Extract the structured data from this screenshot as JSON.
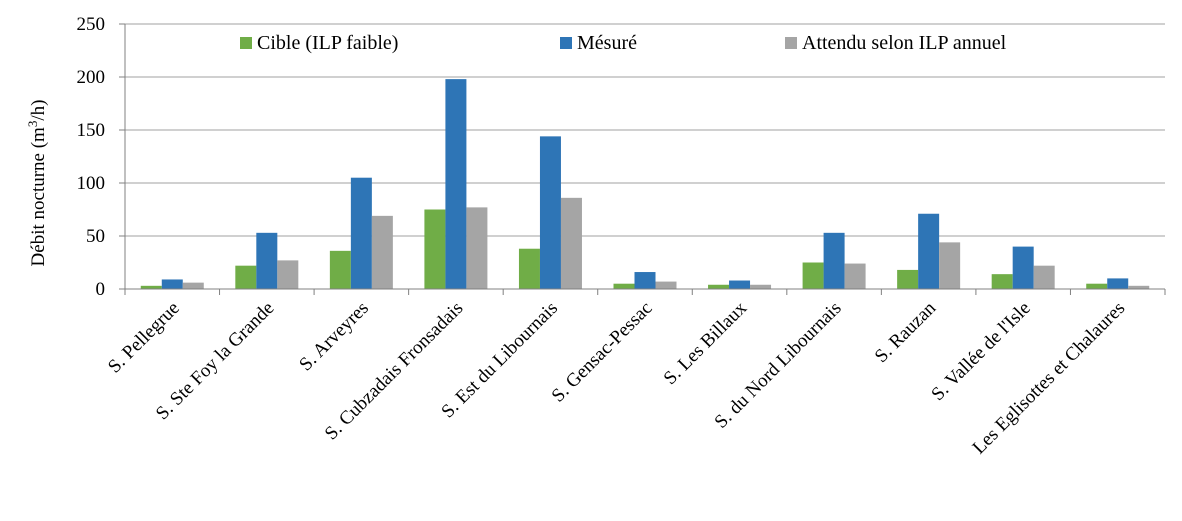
{
  "chart_data": {
    "type": "bar",
    "ylabel": "Débit nocturne (m",
    "ylabel_sup": "3",
    "ylabel_end": "/h)",
    "ylim": [
      0,
      250
    ],
    "yticks": [
      0,
      50,
      100,
      150,
      200,
      250
    ],
    "grid": true,
    "legend_position": "top",
    "categories": [
      "S. Pellegrue",
      "S. Ste Foy la Grande",
      "S. Arveyres",
      "S. Cubzadais Fronsadais",
      "S. Est du Libournais",
      "S. Gensac-Pessac",
      "S. Les Billaux",
      "S. du Nord Libournais",
      "S. Rauzan",
      "S. Vallée de l'Isle",
      "Les Eglisottes et Chalaures"
    ],
    "series": [
      {
        "name": "Cible (ILP faible)",
        "color": "#70ad47",
        "values": [
          3,
          22,
          36,
          75,
          38,
          5,
          4,
          25,
          18,
          14,
          5
        ]
      },
      {
        "name": "Mésuré",
        "color": "#2e75b6",
        "values": [
          9,
          53,
          105,
          198,
          144,
          16,
          8,
          53,
          71,
          40,
          10
        ]
      },
      {
        "name": "Attendu selon ILP annuel",
        "color": "#a5a5a5",
        "values": [
          6,
          27,
          69,
          77,
          86,
          7,
          4,
          24,
          44,
          22,
          3
        ]
      }
    ]
  }
}
